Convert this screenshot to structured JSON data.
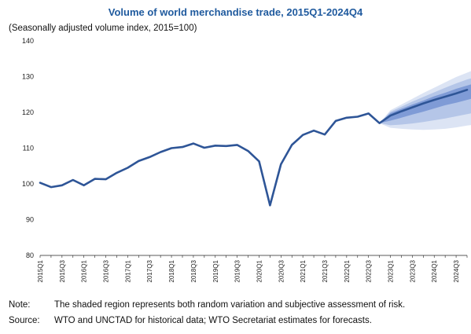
{
  "chart_data": {
    "type": "line",
    "title": "Volume of world merchandise trade, 2015Q1-2024Q4",
    "subtitle": "(Seasonally adjusted volume index, 2015=100)",
    "ylim": [
      80,
      140
    ],
    "yticks": [
      80,
      90,
      100,
      110,
      120,
      130,
      140
    ],
    "grid": false,
    "x": [
      "2015Q1",
      "2015Q2",
      "2015Q3",
      "2015Q4",
      "2016Q1",
      "2016Q2",
      "2016Q3",
      "2016Q4",
      "2017Q1",
      "2017Q2",
      "2017Q3",
      "2017Q4",
      "2018Q1",
      "2018Q2",
      "2018Q3",
      "2018Q4",
      "2019Q1",
      "2019Q2",
      "2019Q3",
      "2019Q4",
      "2020Q1",
      "2020Q2",
      "2020Q3",
      "2020Q4",
      "2021Q1",
      "2021Q2",
      "2021Q3",
      "2021Q4",
      "2022Q1",
      "2022Q2",
      "2022Q3",
      "2022Q4",
      "2023Q1",
      "2023Q2",
      "2023Q3",
      "2023Q4",
      "2024Q1",
      "2024Q2",
      "2024Q3",
      "2024Q4"
    ],
    "xtick_labels": [
      "2015Q1",
      "2015Q3",
      "2016Q1",
      "2016Q3",
      "2017Q1",
      "2017Q3",
      "2018Q1",
      "2018Q3",
      "2019Q1",
      "2019Q3",
      "2020Q1",
      "2020Q3",
      "2021Q1",
      "2021Q3",
      "2022Q1",
      "2022Q3",
      "2023Q1",
      "2023Q3",
      "2024Q1",
      "2024Q3"
    ],
    "series": [
      {
        "values": [
          100.3,
          99.1,
          99.6,
          101.1,
          99.6,
          101.4,
          101.3,
          103.1,
          104.5,
          106.4,
          107.5,
          108.9,
          110.0,
          110.3,
          111.3,
          110.1,
          110.7,
          110.6,
          110.9,
          109.2,
          106.3,
          94.0,
          105.5,
          110.9,
          113.7,
          114.9,
          113.8,
          117.6,
          118.5,
          118.8,
          119.7,
          117.0,
          119.1,
          120.3,
          121.4,
          122.5,
          123.5,
          124.4,
          125.3,
          126.3
        ],
        "color": "#2e5597"
      }
    ],
    "forecast_fan": {
      "start": "2022Q4",
      "bands": [
        {
          "color": "#dce4f4",
          "lower": [
            117.0,
            115.7,
            115.4,
            115.2,
            115.1,
            115.2,
            115.4,
            115.8,
            116.3,
            116.7
          ],
          "upper": [
            117.0,
            120.6,
            122.2,
            123.8,
            125.4,
            126.9,
            128.4,
            129.9,
            131.1,
            132.3
          ]
        },
        {
          "color": "#b5c6e8",
          "lower": [
            117.0,
            116.4,
            116.6,
            116.9,
            117.3,
            117.8,
            118.3,
            118.9,
            119.5,
            120.1
          ],
          "upper": [
            117.0,
            120.2,
            121.6,
            123.0,
            124.3,
            125.6,
            126.9,
            128.1,
            129.2,
            130.0
          ]
        },
        {
          "color": "#7f9bd6",
          "lower": [
            117.0,
            117.7,
            118.5,
            119.4,
            120.2,
            121.1,
            122.0,
            122.7,
            123.5,
            124.3
          ],
          "upper": [
            117.0,
            119.8,
            121.0,
            122.2,
            123.3,
            124.5,
            125.5,
            126.6,
            127.5,
            128.4
          ]
        }
      ]
    }
  },
  "notes": {
    "note_label": "Note:",
    "note_text": "The shaded region represents both random variation and subjective assessment of risk.",
    "source_label": "Source:",
    "source_text": "WTO and UNCTAD for historical data; WTO Secretariat estimates for forecasts."
  }
}
